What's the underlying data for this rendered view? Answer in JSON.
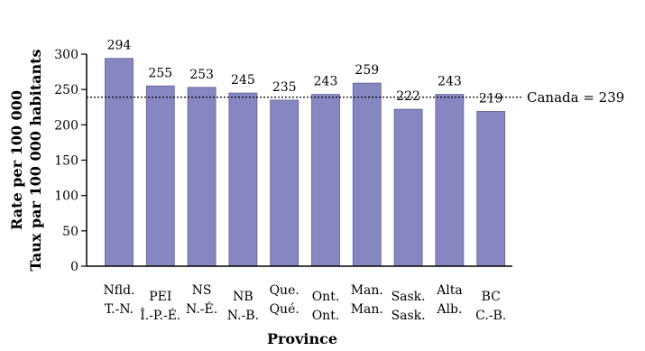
{
  "chart_data": {
    "type": "bar",
    "categories": [
      "Nfld.",
      "PEI",
      "NS",
      "NB",
      "Que.",
      "Ont.",
      "Man.",
      "Sask.",
      "Alta",
      "BC"
    ],
    "categories_fr": [
      "T.-N.",
      "Î.-P.-É.",
      "N.-É.",
      "N.-B.",
      "Qué.",
      "Ont.",
      "Man.",
      "Sask.",
      "Alb.",
      "C.-B."
    ],
    "values": [
      294,
      255,
      253,
      245,
      235,
      243,
      259,
      222,
      243,
      219
    ],
    "value_labels": [
      "294",
      "255",
      "253",
      "245",
      "235",
      "243",
      "259",
      "222",
      "243",
      "219"
    ],
    "xlabel": "Province",
    "ylabel": "Rate per 100 000",
    "ylabel_fr": "Taux par 100 000 habitants",
    "ylim": [
      0,
      300
    ],
    "yticks": [
      0,
      50,
      100,
      150,
      200,
      250,
      300
    ],
    "ytick_labels": [
      "0",
      "50",
      "100",
      "150",
      "200",
      "250",
      "300"
    ],
    "reference_line": {
      "value": 239,
      "label": "Canada = 239",
      "style": "dotted"
    },
    "bar_color": "#8686c0",
    "bar_stroke": "#5e5e9a",
    "grid": false,
    "legend": "none"
  }
}
